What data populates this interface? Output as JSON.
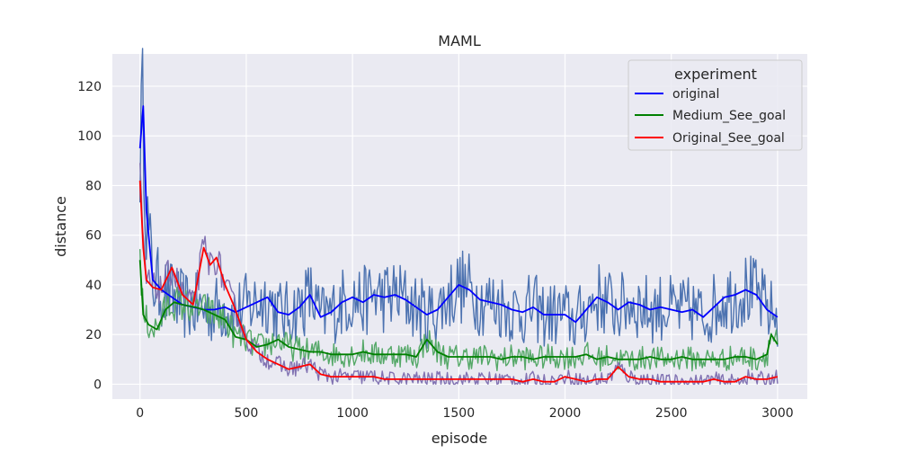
{
  "chart_data": {
    "type": "line",
    "title": "MAML",
    "xlabel": "episode",
    "ylabel": "distance",
    "xlim": [
      -130,
      3140
    ],
    "ylim": [
      -6,
      133
    ],
    "x_ticks": [
      0,
      500,
      1000,
      1500,
      2000,
      2500,
      3000
    ],
    "y_ticks": [
      0,
      20,
      40,
      60,
      80,
      100,
      120
    ],
    "grid": true,
    "legend": {
      "title": "experiment",
      "placement": "top-right",
      "entries": [
        {
          "label": "original",
          "color": "#0000ff"
        },
        {
          "label": "Medium_See_goal",
          "color": "#008000"
        },
        {
          "label": "Original_See_goal",
          "color": "#ff0000"
        }
      ]
    },
    "series": [
      {
        "name": "original",
        "color": "#0000ff",
        "raw_color": "#4c72b0",
        "noise": 8,
        "x": [
          0,
          15,
          30,
          60,
          100,
          150,
          200,
          250,
          300,
          350,
          400,
          450,
          500,
          550,
          600,
          650,
          700,
          750,
          800,
          850,
          900,
          950,
          1000,
          1050,
          1100,
          1150,
          1200,
          1250,
          1300,
          1350,
          1400,
          1450,
          1500,
          1550,
          1600,
          1650,
          1700,
          1750,
          1800,
          1850,
          1900,
          1950,
          2000,
          2050,
          2100,
          2150,
          2200,
          2250,
          2300,
          2350,
          2400,
          2450,
          2500,
          2550,
          2600,
          2650,
          2700,
          2750,
          2800,
          2850,
          2900,
          2950,
          3000
        ],
        "y": [
          95,
          112,
          70,
          42,
          38,
          35,
          32,
          31,
          30,
          30,
          31,
          29,
          31,
          33,
          35,
          29,
          28,
          31,
          36,
          27,
          29,
          33,
          35,
          33,
          36,
          35,
          36,
          34,
          31,
          28,
          30,
          35,
          40,
          38,
          34,
          33,
          32,
          30,
          29,
          31,
          28,
          28,
          28,
          25,
          30,
          35,
          33,
          30,
          33,
          32,
          30,
          31,
          30,
          29,
          30,
          27,
          31,
          35,
          36,
          38,
          36,
          30,
          27
        ]
      },
      {
        "name": "Medium_See_goal",
        "color": "#008000",
        "raw_color": "#55a868",
        "noise": 4,
        "x": [
          0,
          15,
          40,
          80,
          120,
          160,
          200,
          260,
          300,
          350,
          400,
          450,
          500,
          550,
          600,
          650,
          700,
          750,
          800,
          850,
          900,
          950,
          1000,
          1050,
          1100,
          1150,
          1200,
          1250,
          1300,
          1350,
          1400,
          1450,
          1500,
          1550,
          1600,
          1650,
          1700,
          1750,
          1800,
          1850,
          1900,
          1950,
          2000,
          2050,
          2100,
          2150,
          2200,
          2250,
          2300,
          2350,
          2400,
          2450,
          2500,
          2550,
          2600,
          2650,
          2700,
          2750,
          2800,
          2850,
          2900,
          2950,
          2970,
          3000
        ],
        "y": [
          50,
          28,
          24,
          22,
          30,
          33,
          32,
          31,
          30,
          28,
          26,
          19,
          18,
          15,
          16,
          18,
          15,
          14,
          13,
          13,
          12,
          12,
          12,
          13,
          12,
          12,
          12,
          12,
          11,
          18,
          13,
          11,
          11,
          11,
          11,
          11,
          10,
          11,
          11,
          10,
          11,
          11,
          11,
          11,
          12,
          10,
          11,
          10,
          10,
          10,
          11,
          10,
          10,
          11,
          10,
          10,
          10,
          10,
          11,
          11,
          10,
          12,
          20,
          16
        ]
      },
      {
        "name": "Original_See_goal",
        "color": "#ff0000",
        "raw_color": "#8172b2",
        "noise": 3,
        "x": [
          0,
          15,
          30,
          60,
          100,
          150,
          200,
          250,
          300,
          330,
          360,
          400,
          440,
          500,
          550,
          600,
          650,
          700,
          750,
          800,
          850,
          900,
          950,
          1000,
          1050,
          1100,
          1150,
          1200,
          1250,
          1300,
          1350,
          1400,
          1450,
          1500,
          1550,
          1600,
          1650,
          1700,
          1750,
          1800,
          1850,
          1900,
          1950,
          2000,
          2050,
          2100,
          2150,
          2200,
          2250,
          2300,
          2350,
          2400,
          2450,
          2500,
          2550,
          2600,
          2650,
          2700,
          2750,
          2800,
          2850,
          2900,
          2950,
          3000
        ],
        "y": [
          82,
          55,
          42,
          39,
          38,
          47,
          36,
          32,
          55,
          48,
          51,
          40,
          32,
          18,
          13,
          10,
          8,
          6,
          7,
          8,
          4,
          3,
          3,
          3,
          3,
          3,
          2,
          2,
          2,
          2,
          2,
          2,
          2,
          2,
          2,
          2,
          2,
          2,
          2,
          1,
          2,
          1,
          1,
          3,
          2,
          1,
          2,
          2,
          7,
          3,
          2,
          2,
          1,
          1,
          1,
          1,
          1,
          2,
          1,
          1,
          3,
          2,
          2,
          3
        ]
      }
    ]
  }
}
